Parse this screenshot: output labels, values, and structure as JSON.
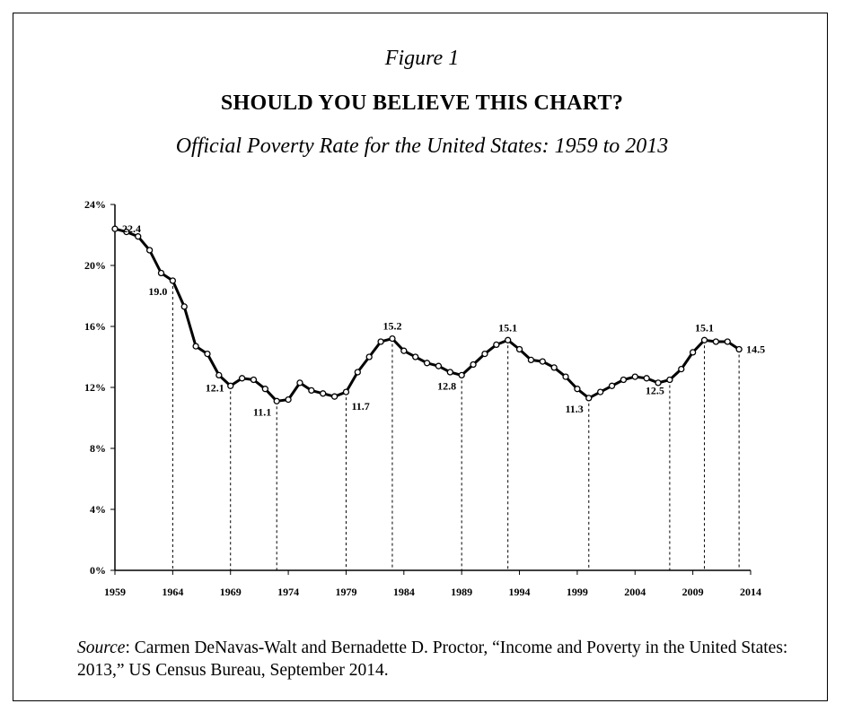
{
  "figure_label": "Figure 1",
  "source": {
    "label": "Source",
    "text": ": Carmen DeNavas-Walt and Bernadette D. Proctor, “Income and Poverty in the United States: 2013,” US Census Bureau, September 2014."
  },
  "colors": {
    "line": "#000000",
    "marker_fill": "#ffffff",
    "axis": "#000000"
  },
  "chart_data": {
    "type": "line",
    "title": "SHOULD YOU BELIEVE THIS CHART?",
    "subtitle": "Official Poverty Rate for the United States: 1959 to 2013",
    "xlabel": "",
    "ylabel": "",
    "xlim": [
      1959,
      2014
    ],
    "ylim": [
      0,
      24
    ],
    "x_ticks": [
      1959,
      1964,
      1969,
      1974,
      1979,
      1984,
      1989,
      1994,
      1999,
      2004,
      2009,
      2014
    ],
    "y_ticks": [
      0,
      4,
      8,
      12,
      16,
      20,
      24
    ],
    "y_tick_labels": [
      "0%",
      "4%",
      "8%",
      "12%",
      "16%",
      "20%",
      "24%"
    ],
    "grid": false,
    "series": [
      {
        "name": "Official Poverty Rate",
        "x": [
          1959,
          1960,
          1961,
          1962,
          1963,
          1964,
          1965,
          1966,
          1967,
          1968,
          1969,
          1970,
          1971,
          1972,
          1973,
          1974,
          1975,
          1976,
          1977,
          1978,
          1979,
          1980,
          1981,
          1982,
          1983,
          1984,
          1985,
          1986,
          1987,
          1988,
          1989,
          1990,
          1991,
          1992,
          1993,
          1994,
          1995,
          1996,
          1997,
          1998,
          1999,
          2000,
          2001,
          2002,
          2003,
          2004,
          2005,
          2006,
          2007,
          2008,
          2009,
          2010,
          2011,
          2012,
          2013
        ],
        "values": [
          22.4,
          22.2,
          21.9,
          21.0,
          19.5,
          19.0,
          17.3,
          14.7,
          14.2,
          12.8,
          12.1,
          12.6,
          12.5,
          11.9,
          11.1,
          11.2,
          12.3,
          11.8,
          11.6,
          11.4,
          11.7,
          13.0,
          14.0,
          15.0,
          15.2,
          14.4,
          14.0,
          13.6,
          13.4,
          13.0,
          12.8,
          13.5,
          14.2,
          14.8,
          15.1,
          14.5,
          13.8,
          13.7,
          13.3,
          12.7,
          11.9,
          11.3,
          11.7,
          12.1,
          12.5,
          12.7,
          12.6,
          12.3,
          12.5,
          13.2,
          14.3,
          15.1,
          15.0,
          15.0,
          14.5
        ]
      }
    ],
    "annotations": [
      {
        "x": 1959,
        "y": 22.4,
        "label": "22.4",
        "drop_line": false,
        "pos": "right"
      },
      {
        "x": 1964,
        "y": 19.0,
        "label": "19.0",
        "drop_line": true,
        "pos": "below-left"
      },
      {
        "x": 1969,
        "y": 12.1,
        "label": "12.1",
        "drop_line": true,
        "pos": "left"
      },
      {
        "x": 1973,
        "y": 11.1,
        "label": "11.1",
        "drop_line": true,
        "pos": "below-left"
      },
      {
        "x": 1979,
        "y": 11.7,
        "label": "11.7",
        "drop_line": true,
        "pos": "below-right"
      },
      {
        "x": 1983,
        "y": 15.2,
        "label": "15.2",
        "drop_line": true,
        "pos": "above"
      },
      {
        "x": 1989,
        "y": 12.8,
        "label": "12.8",
        "drop_line": true,
        "pos": "below-left"
      },
      {
        "x": 1993,
        "y": 15.1,
        "label": "15.1",
        "drop_line": true,
        "pos": "above"
      },
      {
        "x": 2000,
        "y": 11.3,
        "label": "11.3",
        "drop_line": true,
        "pos": "below-left"
      },
      {
        "x": 2007,
        "y": 12.5,
        "label": "12.5",
        "drop_line": true,
        "pos": "below-left"
      },
      {
        "x": 2010,
        "y": 15.1,
        "label": "15.1",
        "drop_line": true,
        "pos": "above"
      },
      {
        "x": 2013,
        "y": 14.5,
        "label": "14.5",
        "drop_line": true,
        "pos": "right"
      }
    ]
  }
}
